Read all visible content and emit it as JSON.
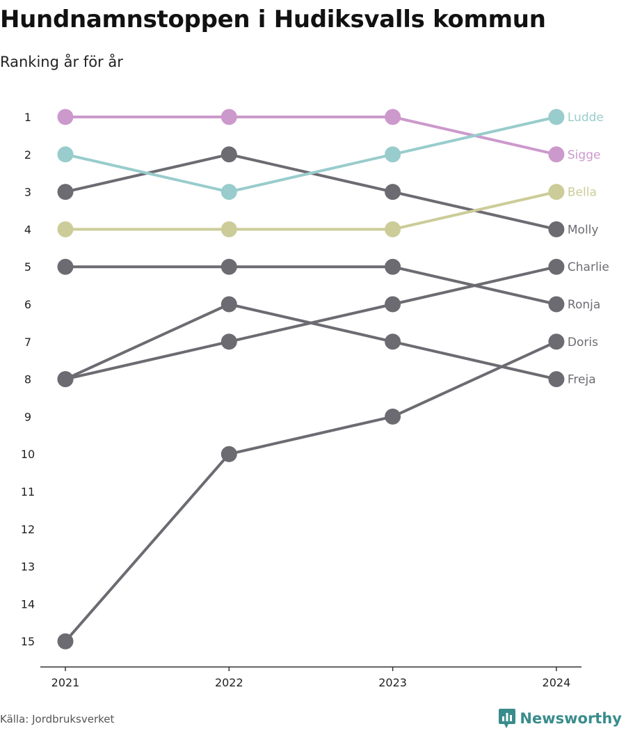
{
  "title": "Hundnamnstoppen i Hudiksvalls kommun",
  "subtitle": "Ranking år för år",
  "source": "Källa: Jordbruksverket",
  "brand": "Newsworthy",
  "colors": {
    "axis": "#333333",
    "brand": "#3a8c8c"
  },
  "chart_data": {
    "type": "line",
    "x": [
      "2021",
      "2022",
      "2023",
      "2024"
    ],
    "y_ticks": [
      1,
      2,
      3,
      4,
      5,
      6,
      7,
      8,
      9,
      10,
      11,
      12,
      13,
      14,
      15
    ],
    "ylim": [
      15,
      1
    ],
    "y_reversed": true,
    "grid": false,
    "legend": "direct labels at right",
    "series": [
      {
        "name": "Freja",
        "values": [
          8,
          6,
          7,
          8
        ],
        "color": "#6c6b72"
      },
      {
        "name": "Doris",
        "values": [
          15,
          10,
          9,
          7
        ],
        "color": "#6c6b72"
      },
      {
        "name": "Ronja",
        "values": [
          5,
          5,
          5,
          6
        ],
        "color": "#6c6b72"
      },
      {
        "name": "Charlie",
        "values": [
          8,
          7,
          6,
          5
        ],
        "color": "#6c6b72"
      },
      {
        "name": "Molly",
        "values": [
          3,
          2,
          3,
          4
        ],
        "color": "#6c6b72"
      },
      {
        "name": "Bella",
        "values": [
          4,
          4,
          4,
          3
        ],
        "color": "#cccc99"
      },
      {
        "name": "Sigge",
        "values": [
          1,
          1,
          1,
          2
        ],
        "color": "#cc99cc"
      },
      {
        "name": "Ludde",
        "values": [
          2,
          3,
          2,
          1
        ],
        "color": "#99cccc"
      }
    ]
  }
}
